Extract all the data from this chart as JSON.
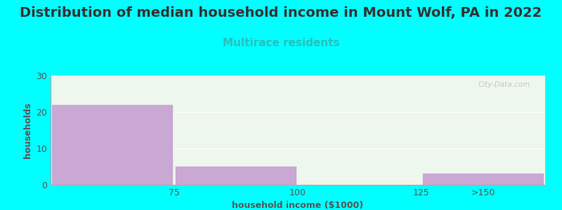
{
  "title": "Distribution of median household income in Mount Wolf, PA in 2022",
  "subtitle": "Multirace residents",
  "xlabel": "household income ($1000)",
  "ylabel": "households",
  "background_color": "#00FFFF",
  "plot_bg_color_top": "#e8f5e9",
  "plot_bg_color_bottom": "#f5fdf5",
  "bar_color": "#C9A8D4",
  "bar_edge_color": "#C9A8D4",
  "bin_edges": [
    50,
    75,
    100,
    125,
    150
  ],
  "tick_labels": [
    "75",
    "100",
    "125",
    ">150"
  ],
  "values": [
    22,
    5,
    0,
    3
  ],
  "ylim": [
    0,
    30
  ],
  "yticks": [
    0,
    10,
    20,
    30
  ],
  "title_fontsize": 14,
  "subtitle_fontsize": 11,
  "subtitle_color": "#2ABFBF",
  "axis_label_fontsize": 9,
  "tick_fontsize": 9,
  "title_color": "#333333",
  "tick_color": "#555555"
}
